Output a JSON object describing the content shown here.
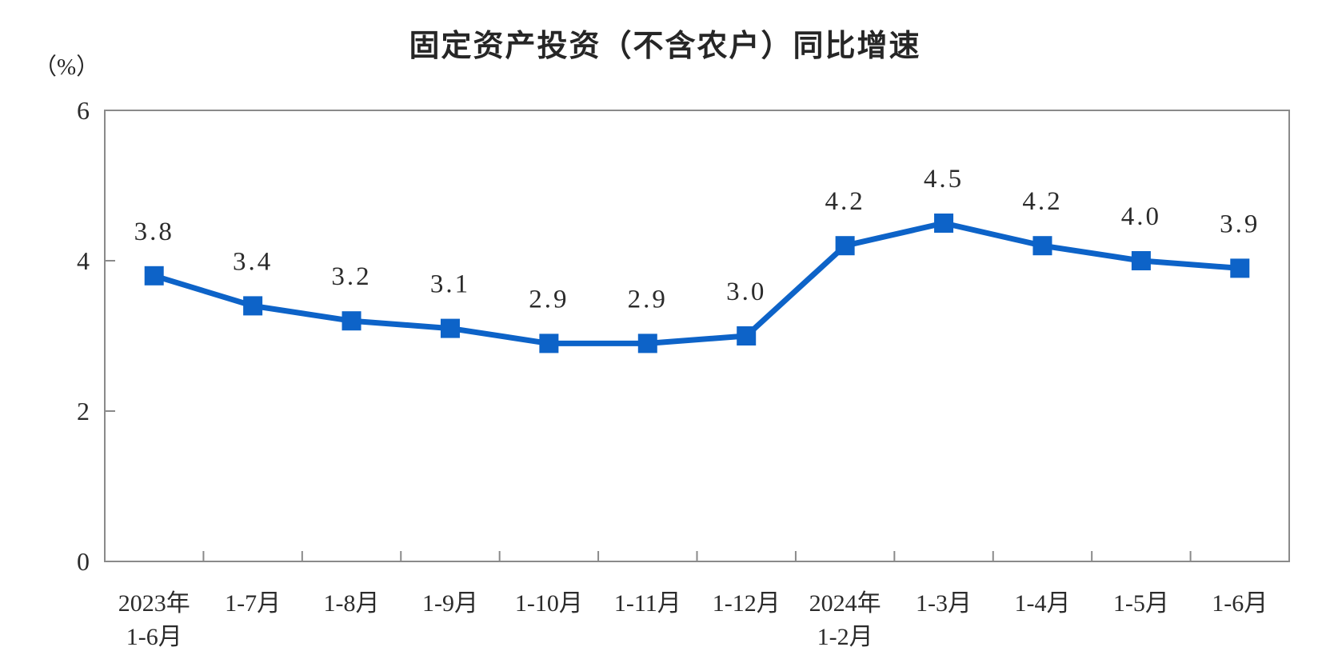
{
  "chart_data": {
    "type": "line",
    "title": "固定资产投资（不含农户）同比增速",
    "unit_label": "（%）",
    "categories": [
      "2023年\n1-6月",
      "1-7月",
      "1-8月",
      "1-9月",
      "1-10月",
      "1-11月",
      "1-12月",
      "2024年\n1-2月",
      "1-3月",
      "1-4月",
      "1-5月",
      "1-6月"
    ],
    "values": [
      3.8,
      3.4,
      3.2,
      3.1,
      2.9,
      2.9,
      3.0,
      4.2,
      4.5,
      4.2,
      4.0,
      3.9
    ],
    "point_labels": [
      "3.8",
      "3.4",
      "3.2",
      "3.1",
      "2.9",
      "2.9",
      "3.0",
      "4.2",
      "4.5",
      "4.2",
      "4.0",
      "3.9"
    ],
    "yticks": [
      0,
      2,
      4,
      6
    ],
    "ylim": [
      0,
      6
    ],
    "xlabel": "",
    "ylabel": "（%）",
    "grid": false,
    "legend_position": "none",
    "marker_shape": "square",
    "colors": {
      "line": "#0d63c8",
      "marker": "#0d63c8",
      "axis": "#8a8a8a",
      "text": "#2b2b2b",
      "background": "#ffffff"
    }
  }
}
